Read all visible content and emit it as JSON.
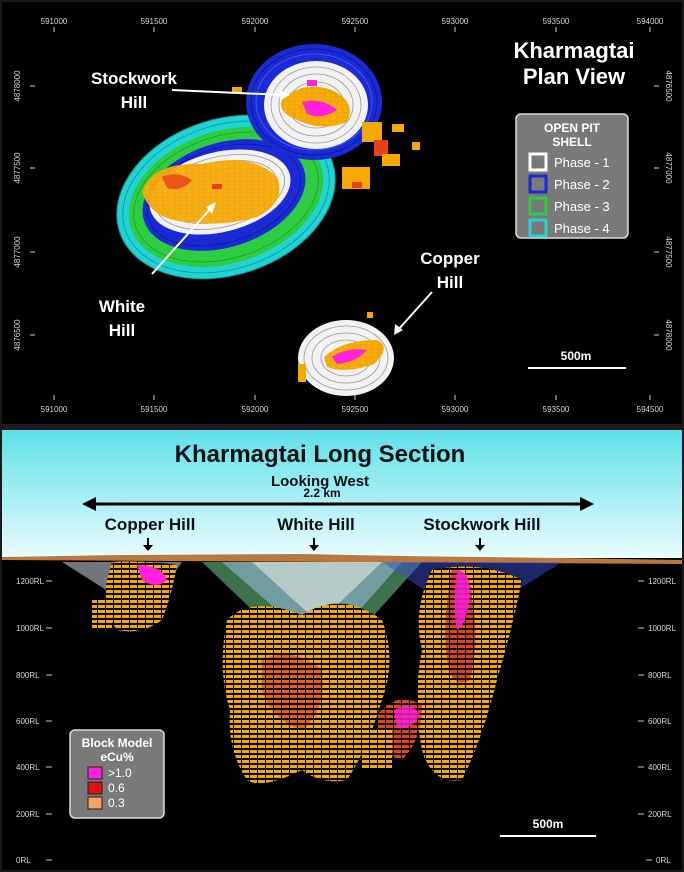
{
  "plan_view": {
    "title_line1": "Kharmagtai",
    "title_line2": "Plan View",
    "x_ticks": [
      "591000",
      "591500",
      "592000",
      "592500",
      "593000",
      "593500",
      "594000",
      "594500"
    ],
    "y_ticks_left": [
      "4878000",
      "4877500",
      "4877000",
      "4876500"
    ],
    "y_ticks_right": [
      "4876500",
      "4877000",
      "4877500",
      "4878000"
    ],
    "labels": {
      "stockwork_1": "Stockwork",
      "stockwork_2": "Hill",
      "white_1": "White",
      "white_2": "Hill",
      "copper_1": "Copper",
      "copper_2": "Hill"
    },
    "legend": {
      "title_1": "OPEN PIT",
      "title_2": "SHELL",
      "items": [
        {
          "label": "Phase - 1",
          "color": "#ffffff"
        },
        {
          "label": "Phase - 2",
          "color": "#1a2bd6"
        },
        {
          "label": "Phase - 3",
          "color": "#2ecc40"
        },
        {
          "label": "Phase - 4",
          "color": "#22d3d3"
        }
      ]
    },
    "scale_bar": "500m"
  },
  "long_section": {
    "title": "Kharmagtai Long Section",
    "subtitle": "Looking West",
    "distance": "2.2 km",
    "labels": {
      "copper": "Copper Hill",
      "white": "White Hill",
      "stockwork": "Stockwork Hill"
    },
    "rl_left": [
      "1200RL",
      "1000RL",
      "800RL",
      "600RL",
      "400RL",
      "200RL",
      "0RL"
    ],
    "rl_right": [
      "1200RL",
      "1000RL",
      "800RL",
      "600RL",
      "400RL",
      "200RL",
      "0RL"
    ],
    "legend": {
      "title_1": "Block Model",
      "title_2": "eCu%",
      "items": [
        {
          "label": ">1.0",
          "color": "#ff22dd"
        },
        {
          "label": "0.6",
          "color": "#e01010"
        },
        {
          "label": "0.3",
          "color": "#f4a460"
        }
      ]
    },
    "scale_bar": "500m"
  },
  "colors": {
    "grade_low": "#f6a800",
    "grade_mid": "#e8401a",
    "grade_high": "#ff22dd",
    "sky_top": "#5ee0ea",
    "sky_bottom": "#e8fbfd",
    "surface": "#b87840"
  }
}
